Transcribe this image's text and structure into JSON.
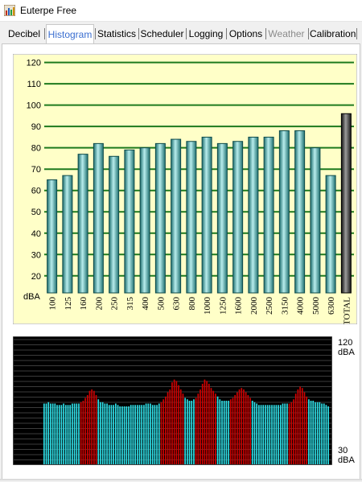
{
  "window": {
    "title": "Euterpe Free"
  },
  "tabs": [
    {
      "label": "Decibel",
      "state": "normal"
    },
    {
      "label": "Histogram",
      "state": "active"
    },
    {
      "label": "Statistics",
      "state": "normal"
    },
    {
      "label": "Scheduler",
      "state": "normal"
    },
    {
      "label": "Logging",
      "state": "normal"
    },
    {
      "label": "Options",
      "state": "normal"
    },
    {
      "label": "Weather",
      "state": "disabled"
    },
    {
      "label": "Calibration",
      "state": "normal"
    }
  ],
  "colors": {
    "plot_background": "#ffffc8",
    "bar_teal": "#3aa5a5",
    "bar_total": "#303030",
    "gridline": "#1e7a1e",
    "spectrum_background": "#000000",
    "spectrum_cyan": "#2ee0e8",
    "spectrum_red": "#d00000",
    "active_tab_text": "#3a6ed0"
  },
  "chart_data": [
    {
      "type": "bar",
      "ylabel": "dBA",
      "ylim": [
        12,
        124
      ],
      "yticks": [
        20,
        30,
        40,
        50,
        60,
        70,
        80,
        90,
        100,
        110,
        120
      ],
      "grid": true,
      "categories": [
        "100",
        "125",
        "160",
        "200",
        "250",
        "315",
        "400",
        "500",
        "630",
        "800",
        "1000",
        "1250",
        "1600",
        "2000",
        "2500",
        "3150",
        "4000",
        "5000",
        "6300",
        "TOTAL"
      ],
      "values": [
        65,
        67,
        77,
        82,
        76,
        79,
        80,
        82,
        84,
        83,
        85,
        82,
        83,
        85,
        85,
        88,
        88,
        80,
        67,
        96
      ]
    },
    {
      "type": "bar",
      "ylim": [
        30,
        120
      ],
      "axis_labels": {
        "top_value": "120",
        "top_unit": "dBA",
        "bottom_value": "30",
        "bottom_unit": "dBA"
      },
      "values": [
        73,
        73,
        74,
        73,
        73,
        73,
        72,
        72,
        72,
        73,
        72,
        72,
        72,
        73,
        73,
        73,
        73,
        74,
        75,
        77,
        79,
        82,
        83,
        82,
        79,
        76,
        74,
        74,
        73,
        73,
        72,
        72,
        72,
        73,
        72,
        71,
        71,
        71,
        71,
        71,
        72,
        72,
        72,
        72,
        72,
        72,
        72,
        73,
        73,
        73,
        72,
        72,
        72,
        73,
        74,
        76,
        78,
        81,
        83,
        88,
        90,
        89,
        86,
        83,
        80,
        77,
        76,
        75,
        75,
        76,
        77,
        80,
        83,
        87,
        90,
        89,
        87,
        84,
        82,
        80,
        78,
        76,
        75,
        75,
        75,
        75,
        76,
        77,
        79,
        81,
        83,
        84,
        83,
        81,
        79,
        77,
        75,
        74,
        73,
        72,
        72,
        72,
        72,
        72,
        72,
        72,
        72,
        72,
        72,
        72,
        73,
        73,
        73,
        73,
        74,
        76,
        80,
        83,
        85,
        84,
        81,
        78,
        76,
        75,
        75,
        74,
        74,
        74,
        73,
        73,
        72,
        71
      ],
      "highlight_ranges": [
        [
          17,
          24
        ],
        [
          54,
          64
        ],
        [
          70,
          79
        ],
        [
          86,
          95
        ],
        [
          113,
          121
        ]
      ]
    }
  ]
}
